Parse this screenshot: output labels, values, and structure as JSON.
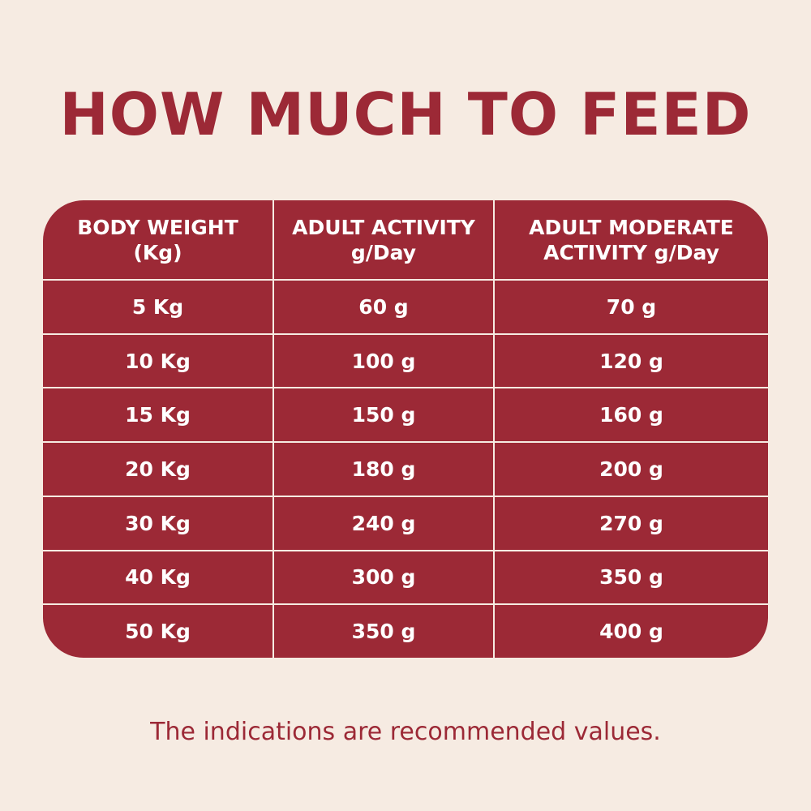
{
  "title": "HOW MUCH TO FEED",
  "table": {
    "headers": [
      {
        "line1": "BODY WEIGHT",
        "line2": "(Kg)"
      },
      {
        "line1": "ADULT ACTIVITY",
        "line2": "g/Day"
      },
      {
        "line1": "ADULT MODERATE",
        "line2": "ACTIVITY g/Day"
      }
    ],
    "rows": [
      [
        "5 Kg",
        "60 g",
        "70 g"
      ],
      [
        "10 Kg",
        "100 g",
        "120 g"
      ],
      [
        "15 Kg",
        "150 g",
        "160 g"
      ],
      [
        "20 Kg",
        "180 g",
        "200 g"
      ],
      [
        "30 Kg",
        "240 g",
        "270 g"
      ],
      [
        "40 Kg",
        "300 g",
        "350 g"
      ],
      [
        "50 Kg",
        "350 g",
        "400 g"
      ]
    ]
  },
  "footnote": "The indications are recommended values.",
  "colors": {
    "accent": "#9c2936",
    "background": "#f6ebe2",
    "cell_text": "#ffffff"
  }
}
